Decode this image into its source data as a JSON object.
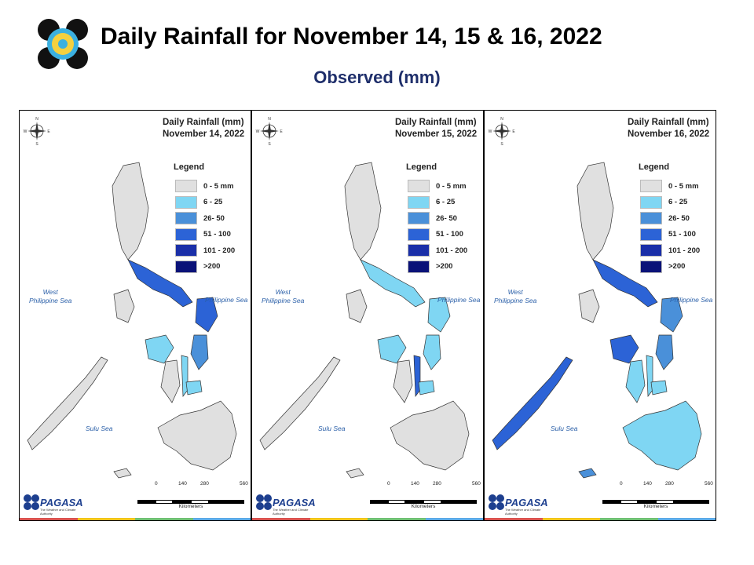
{
  "header": {
    "title": "Daily Rainfall for November 14, 15 & 16, 2022",
    "subtitle": "Observed (mm)"
  },
  "legend": {
    "title": "Legend",
    "items": [
      {
        "label": "0 - 5 mm",
        "color": "#e0e0e0"
      },
      {
        "label": "6 - 25",
        "color": "#7fd6f3"
      },
      {
        "label": "26- 50",
        "color": "#4a90d9"
      },
      {
        "label": "51 - 100",
        "color": "#2c63d6"
      },
      {
        "label": "101 - 200",
        "color": "#1a2fa8"
      },
      {
        "label": ">200",
        "color": "#0a1278"
      }
    ]
  },
  "panels": [
    {
      "heading": "Daily Rainfall (mm)",
      "date": "November 14, 2022"
    },
    {
      "heading": "Daily Rainfall (mm)",
      "date": "November 15, 2022"
    },
    {
      "heading": "Daily Rainfall (mm)",
      "date": "November 16, 2022",
      "legend_items": [
        "0 - 5 mm",
        "6 - 25",
        "26- 50",
        "51 - 100",
        "101 - 200",
        ">200"
      ]
    }
  ],
  "seas": {
    "west": "West\nPhilippine Sea",
    "east": "Philippine Sea",
    "sulu": "Sulu Sea"
  },
  "scale": {
    "ticks": [
      "0",
      "140",
      "280",
      "560"
    ],
    "unit": "Kilometers"
  },
  "compass": {
    "n": "N",
    "s": "S",
    "e": "E",
    "w": "W"
  },
  "brand": {
    "name": "PAGASA",
    "tagline": "The Weather and Climate Authority"
  },
  "colors": {
    "title_blue": "#1f2f6b",
    "sea_label": "#2a5fa8",
    "strip": [
      "#d9534f",
      "#f0c419",
      "#6fbf73",
      "#5aa9e6"
    ]
  }
}
